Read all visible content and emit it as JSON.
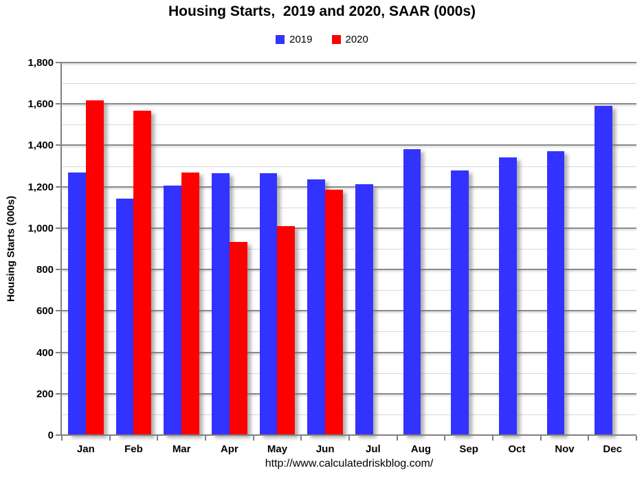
{
  "chart_data": {
    "type": "bar",
    "title": "Housing Starts,  2019 and 2020, SAAR (000s)",
    "ylabel": "Housing Starts (000s)",
    "xlabel": "",
    "categories": [
      "Jan",
      "Feb",
      "Mar",
      "Apr",
      "May",
      "Jun",
      "Jul",
      "Aug",
      "Sep",
      "Oct",
      "Nov",
      "Dec"
    ],
    "series": [
      {
        "name": "2019",
        "color": "#3333FF",
        "values": [
          1270,
          1141,
          1205,
          1267,
          1266,
          1235,
          1212,
          1380,
          1277,
          1343,
          1373,
          1590
        ]
      },
      {
        "name": "2020",
        "color": "#FF0000",
        "values": [
          1617,
          1567,
          1269,
          933,
          1011,
          1186
        ]
      }
    ],
    "ylim": [
      0,
      1800
    ],
    "y_major_step": 200,
    "y_minor_step": 100,
    "grid": "horizontal, minor light + major dark",
    "legend_position": "top-center"
  },
  "footer": {
    "url": "http://www.calculatedriskblog.com/"
  },
  "colors": {
    "background": "#FFFFFF",
    "axis": "#808080",
    "major_grid": "#8A8A8A",
    "minor_grid": "#D9D9D9",
    "text": "#000000",
    "series_2019": "#3333FF",
    "series_2020": "#FF0000"
  }
}
